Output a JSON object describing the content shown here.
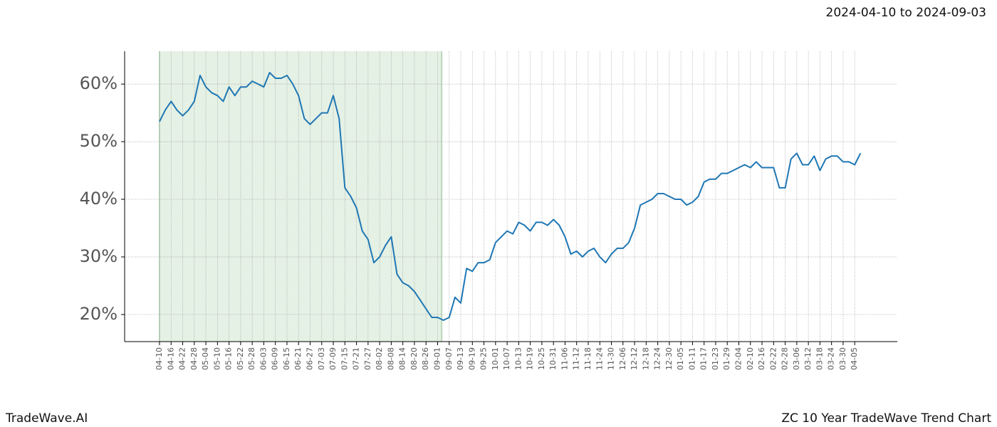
{
  "chart_data": {
    "type": "line",
    "title": "2024-04-10 to 2024-09-03",
    "footer_left": "TradeWave.AI",
    "footer_right": "ZC 10 Year TradeWave Trend Chart",
    "categories": [
      "04-10",
      null,
      "04-16",
      null,
      "04-22",
      null,
      "04-28",
      null,
      "05-04",
      null,
      "05-10",
      null,
      "05-16",
      null,
      "05-22",
      null,
      "05-28",
      null,
      "06-03",
      null,
      "06-09",
      null,
      "06-15",
      null,
      "06-21",
      null,
      "06-27",
      null,
      "07-03",
      null,
      "07-09",
      null,
      "07-15",
      null,
      "07-21",
      null,
      "07-27",
      null,
      "08-02",
      null,
      "08-08",
      null,
      "08-14",
      null,
      "08-20",
      null,
      "08-26",
      null,
      "09-01",
      null,
      "09-07",
      null,
      "09-13",
      null,
      "09-19",
      null,
      "09-25",
      null,
      "10-01",
      null,
      "10-07",
      null,
      "10-13",
      null,
      "10-19",
      null,
      "10-25",
      null,
      "10-31",
      null,
      "11-06",
      null,
      "11-12",
      null,
      "11-18",
      null,
      "11-24",
      null,
      "11-30",
      null,
      "12-06",
      null,
      "12-12",
      null,
      "12-18",
      null,
      "12-24",
      null,
      "12-30",
      null,
      "01-05",
      null,
      "01-11",
      null,
      "01-17",
      null,
      "01-23",
      null,
      "01-29",
      null,
      "02-04",
      null,
      "02-10",
      null,
      "02-16",
      null,
      "02-22",
      null,
      "02-28",
      null,
      "03-06",
      null,
      "03-12",
      null,
      "03-18",
      null,
      "03-24",
      null,
      "03-30",
      null,
      "04-05",
      null
    ],
    "values": [
      53.5,
      55.5,
      57,
      55.5,
      54.5,
      55.5,
      57,
      61.5,
      59.5,
      58.5,
      58,
      57,
      59.5,
      58,
      59.5,
      59.5,
      60.5,
      60,
      59.5,
      62,
      61,
      61,
      61.5,
      60,
      58,
      54,
      53,
      54,
      55,
      55,
      58,
      54,
      42,
      40.5,
      38.5,
      34.5,
      33,
      29,
      30,
      32,
      33.5,
      27,
      25.5,
      25,
      24,
      22.5,
      21,
      19.5,
      19.5,
      19,
      19.5,
      23,
      22,
      28,
      27.5,
      29,
      29,
      29.5,
      32.5,
      33.5,
      34.5,
      34,
      36,
      35.5,
      34.5,
      36,
      36,
      35.5,
      36.5,
      35.5,
      33.5,
      30.5,
      31,
      30,
      31,
      31.5,
      30,
      29,
      30.5,
      31.5,
      31.5,
      32.5,
      35,
      39,
      39.5,
      40,
      41,
      41,
      40.5,
      40,
      40,
      39,
      39.5,
      40.5,
      43,
      43.5,
      43.5,
      44.5,
      44.5,
      45,
      45.5,
      46,
      45.5,
      46.5,
      45.5,
      45.5,
      45.5,
      42,
      42,
      47,
      48,
      46,
      46,
      47.5,
      45,
      47,
      47.5,
      47.5,
      46.5,
      46.5,
      46,
      48
    ],
    "color": "#1f77b4",
    "shade": {
      "from": 0,
      "to": 48.7,
      "color": "#e5f1e5"
    },
    "ylim": [
      15.3,
      65.7
    ],
    "yticks": [
      {
        "value": 20,
        "label": "20%"
      },
      {
        "value": 30,
        "label": "30%"
      },
      {
        "value": 40,
        "label": "40%"
      },
      {
        "value": 50,
        "label": "50%"
      },
      {
        "value": 60,
        "label": "60%"
      }
    ],
    "grid": true
  }
}
